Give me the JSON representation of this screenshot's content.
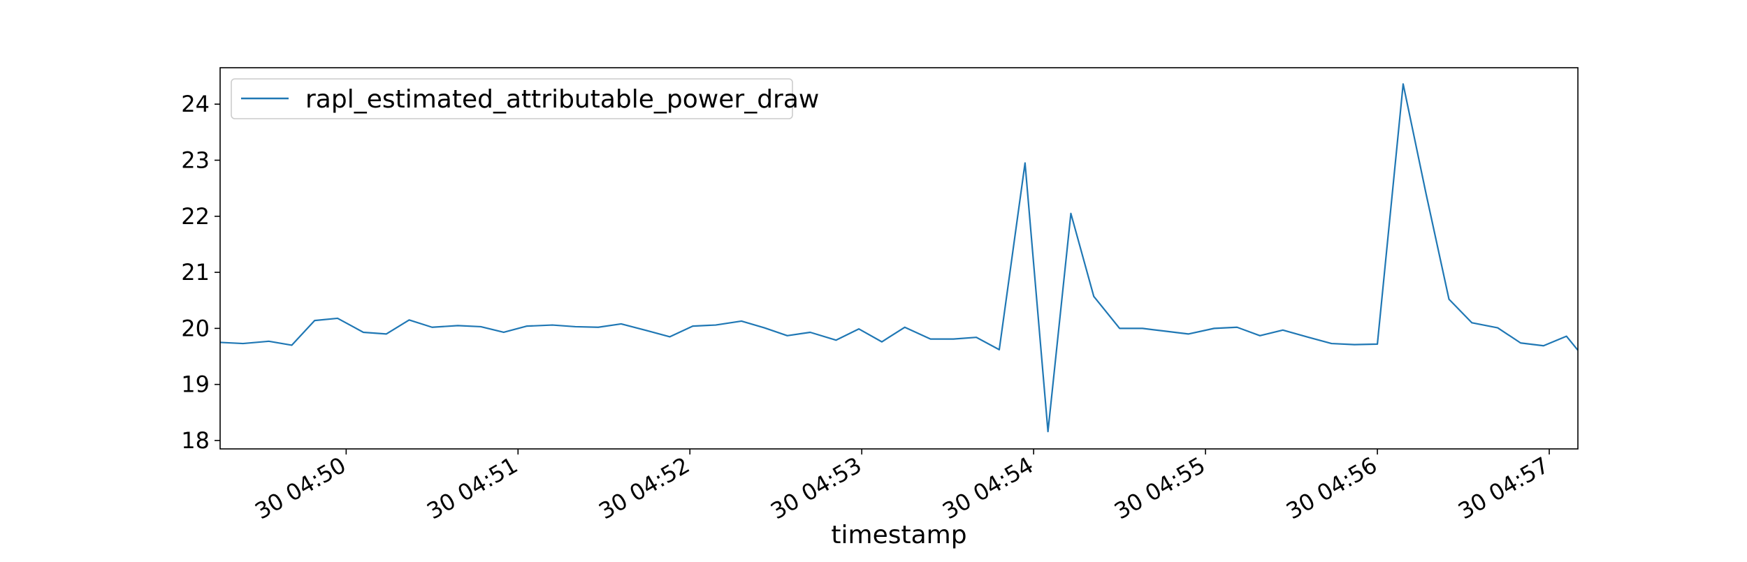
{
  "chart_data": {
    "type": "line",
    "title": "",
    "xlabel": "timestamp",
    "ylabel": "",
    "ylim": [
      17.85,
      24.65
    ],
    "yticks": [
      18,
      19,
      20,
      21,
      22,
      23,
      24
    ],
    "xlim": [
      "04:49:16",
      "04:57:10"
    ],
    "xticks": [
      {
        "t": "04:50:00",
        "label": "30 04:50"
      },
      {
        "t": "04:51:00",
        "label": "30 04:51"
      },
      {
        "t": "04:52:00",
        "label": "30 04:52"
      },
      {
        "t": "04:53:00",
        "label": "30 04:53"
      },
      {
        "t": "04:54:00",
        "label": "30 04:54"
      },
      {
        "t": "04:55:00",
        "label": "30 04:55"
      },
      {
        "t": "04:56:00",
        "label": "30 04:56"
      },
      {
        "t": "04:57:00",
        "label": "30 04:57"
      }
    ],
    "grid": false,
    "legend_position": "top-left",
    "series": [
      {
        "name": "rapl_estimated_attributable_power_draw",
        "color": "#1f77b4",
        "x": [
          "04:49:16",
          "04:49:24",
          "04:49:33",
          "04:49:41",
          "04:49:49",
          "04:49:57",
          "04:50:06",
          "04:50:14",
          "04:50:22",
          "04:50:30",
          "04:50:39",
          "04:50:47",
          "04:50:55",
          "04:51:03",
          "04:51:12",
          "04:51:20",
          "04:51:28",
          "04:51:36",
          "04:51:45",
          "04:51:53",
          "04:52:01",
          "04:52:09",
          "04:52:18",
          "04:52:26",
          "04:52:34",
          "04:52:42",
          "04:52:51",
          "04:52:59",
          "04:53:07",
          "04:53:15",
          "04:53:24",
          "04:53:32",
          "04:53:40",
          "04:53:48",
          "04:53:57",
          "04:54:05",
          "04:54:13",
          "04:54:21",
          "04:54:30",
          "04:54:38",
          "04:54:46",
          "04:54:54",
          "04:55:03",
          "04:55:11",
          "04:55:19",
          "04:55:27",
          "04:55:36",
          "04:55:44",
          "04:55:52",
          "04:56:00",
          "04:56:09",
          "04:56:17",
          "04:56:25",
          "04:56:33",
          "04:56:42",
          "04:56:50",
          "04:56:58",
          "04:57:06",
          "04:57:10"
        ],
        "y": [
          19.75,
          19.73,
          19.77,
          19.7,
          20.14,
          20.18,
          19.93,
          19.9,
          20.15,
          20.02,
          20.05,
          20.03,
          19.93,
          20.04,
          20.06,
          20.03,
          20.02,
          20.08,
          19.96,
          19.85,
          20.04,
          20.06,
          20.13,
          20.01,
          19.87,
          19.93,
          19.79,
          19.99,
          19.76,
          20.02,
          19.81,
          19.81,
          19.84,
          19.62,
          22.95,
          18.16,
          22.05,
          20.57,
          20.0,
          20.0,
          19.95,
          19.9,
          20.0,
          20.02,
          19.87,
          19.97,
          19.84,
          19.73,
          19.71,
          19.72,
          24.36,
          22.4,
          20.52,
          20.1,
          20.01,
          19.74,
          19.69,
          19.86,
          19.61
        ]
      }
    ]
  }
}
